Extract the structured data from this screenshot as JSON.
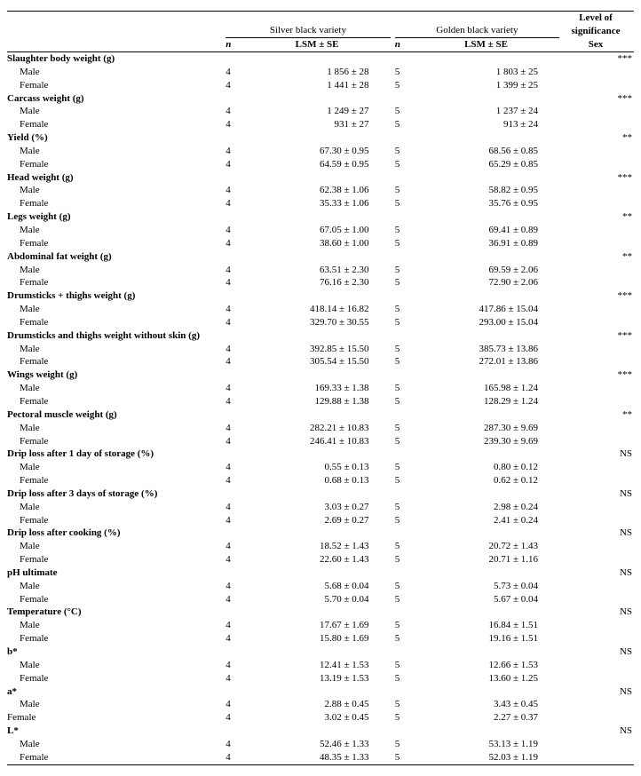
{
  "headers": {
    "variety1": "Silver black variety",
    "variety2": "Golden black variety",
    "level_sig": "Level of significance",
    "n": "n",
    "lsm": "LSM ± SE",
    "sex": "Sex"
  },
  "row_labels": {
    "male": "Male",
    "female": "Female"
  },
  "groups": [
    {
      "title": "Slaughter body weight (g)",
      "sig": "***",
      "rows": [
        {
          "sex": "male",
          "n1": "4",
          "lsm1": "1 856 ± 28",
          "n2": "5",
          "lsm2": "1 803 ± 25"
        },
        {
          "sex": "female",
          "n1": "4",
          "lsm1": "1 441 ± 28",
          "n2": "5",
          "lsm2": "1 399 ± 25"
        }
      ]
    },
    {
      "title": "Carcass weight (g)",
      "sig": "***",
      "rows": [
        {
          "sex": "male",
          "n1": "4",
          "lsm1": "1 249 ± 27",
          "n2": "5",
          "lsm2": "1 237 ± 24"
        },
        {
          "sex": "female",
          "n1": "4",
          "lsm1": "931 ± 27",
          "n2": "5",
          "lsm2": "913 ± 24"
        }
      ]
    },
    {
      "title": "Yield (%)",
      "sig": "**",
      "rows": [
        {
          "sex": "male",
          "n1": "4",
          "lsm1": "67.30 ± 0.95",
          "n2": "5",
          "lsm2": "68.56 ± 0.85"
        },
        {
          "sex": "female",
          "n1": "4",
          "lsm1": "64.59 ± 0.95",
          "n2": "5",
          "lsm2": "65.29 ± 0.85"
        }
      ]
    },
    {
      "title": "Head weight (g)",
      "sig": "***",
      "rows": [
        {
          "sex": "male",
          "n1": "4",
          "lsm1": "62.38 ± 1.06",
          "n2": "5",
          "lsm2": "58.82 ± 0.95"
        },
        {
          "sex": "female",
          "n1": "4",
          "lsm1": "35.33 ± 1.06",
          "n2": "5",
          "lsm2": "35.76 ± 0.95"
        }
      ]
    },
    {
      "title": "Legs weight (g)",
      "sig": "**",
      "rows": [
        {
          "sex": "male",
          "n1": "4",
          "lsm1": "67.05 ± 1.00",
          "n2": "5",
          "lsm2": "69.41 ± 0.89"
        },
        {
          "sex": "female",
          "n1": "4",
          "lsm1": "38.60 ± 1.00",
          "n2": "5",
          "lsm2": "36.91 ± 0.89"
        }
      ]
    },
    {
      "title": "Abdominal fat weight (g)",
      "sig": "**",
      "rows": [
        {
          "sex": "male",
          "n1": "4",
          "lsm1": "63.51 ± 2.30",
          "n2": "5",
          "lsm2": "69.59 ± 2.06"
        },
        {
          "sex": "female",
          "n1": "4",
          "lsm1": "76.16 ± 2.30",
          "n2": "5",
          "lsm2": "72.90 ± 2.06"
        }
      ]
    },
    {
      "title": "Drumsticks + thighs weight (g)",
      "sig": "***",
      "rows": [
        {
          "sex": "male",
          "n1": "4",
          "lsm1": "418.14 ± 16.82",
          "n2": "5",
          "lsm2": "417.86 ± 15.04"
        },
        {
          "sex": "female",
          "n1": "4",
          "lsm1": "329.70 ± 30.55",
          "n2": "5",
          "lsm2": "293.00 ± 15.04"
        }
      ]
    },
    {
      "title": "Drumsticks and thighs weight without skin (g)",
      "sig": "***",
      "rows": [
        {
          "sex": "male",
          "n1": "4",
          "lsm1": "392.85 ± 15.50",
          "n2": "5",
          "lsm2": "385.73 ± 13.86"
        },
        {
          "sex": "female",
          "n1": "4",
          "lsm1": "305.54 ± 15.50",
          "n2": "5",
          "lsm2": "272.01 ± 13.86"
        }
      ]
    },
    {
      "title": "Wings weight (g)",
      "sig": "***",
      "rows": [
        {
          "sex": "male",
          "n1": "4",
          "lsm1": "169.33 ± 1.38",
          "n2": "5",
          "lsm2": "165.98 ± 1.24"
        },
        {
          "sex": "female",
          "n1": "4",
          "lsm1": "129.88 ± 1.38",
          "n2": "5",
          "lsm2": "128.29 ± 1.24"
        }
      ]
    },
    {
      "title": "Pectoral muscle weight (g)",
      "sig": "**",
      "rows": [
        {
          "sex": "male",
          "n1": "4",
          "lsm1": "282.21 ± 10.83",
          "n2": "5",
          "lsm2": "287.30 ± 9.69"
        },
        {
          "sex": "female",
          "n1": "4",
          "lsm1": "246.41 ± 10.83",
          "n2": "5",
          "lsm2": "239.30 ± 9.69"
        }
      ]
    },
    {
      "title": "Drip loss after 1 day of storage (%)",
      "sig": "NS",
      "rows": [
        {
          "sex": "male",
          "n1": "4",
          "lsm1": "0.55 ± 0.13",
          "n2": "5",
          "lsm2": "0.80 ± 0.12"
        },
        {
          "sex": "female",
          "n1": "4",
          "lsm1": "0.68 ± 0.13",
          "n2": "5",
          "lsm2": "0.62 ± 0.12"
        }
      ]
    },
    {
      "title": "Drip loss after 3 days of storage (%)",
      "sig": "NS",
      "rows": [
        {
          "sex": "male",
          "n1": "4",
          "lsm1": "3.03 ± 0.27",
          "n2": "5",
          "lsm2": "2.98 ± 0.24"
        },
        {
          "sex": "female",
          "n1": "4",
          "lsm1": "2.69 ± 0.27",
          "n2": "5",
          "lsm2": "2.41 ± 0.24"
        }
      ]
    },
    {
      "title": "Drip loss after cooking (%)",
      "sig": "NS",
      "rows": [
        {
          "sex": "male",
          "n1": "4",
          "lsm1": "18.52 ± 1.43",
          "n2": "5",
          "lsm2": "20.72 ± 1.43"
        },
        {
          "sex": "female",
          "n1": "4",
          "lsm1": "22.60 ± 1.43",
          "n2": "5",
          "lsm2": "20.71 ± 1.16"
        }
      ]
    },
    {
      "title": "pH ultimate",
      "sig": "NS",
      "rows": [
        {
          "sex": "male",
          "n1": "4",
          "lsm1": "5.68 ± 0.04",
          "n2": "5",
          "lsm2": "5.73 ± 0.04"
        },
        {
          "sex": "female",
          "n1": "4",
          "lsm1": "5.70 ± 0.04",
          "n2": "5",
          "lsm2": "5.67 ± 0.04"
        }
      ]
    },
    {
      "title": "Temperature (°C)",
      "sig": "NS",
      "rows": [
        {
          "sex": "male",
          "n1": "4",
          "lsm1": "17.67 ± 1.69",
          "n2": "5",
          "lsm2": "16.84 ± 1.51"
        },
        {
          "sex": "female",
          "n1": "4",
          "lsm1": "15.80 ± 1.69",
          "n2": "5",
          "lsm2": "19.16 ± 1.51"
        }
      ]
    },
    {
      "title": "b*",
      "sig": "NS",
      "rows": [
        {
          "sex": "male",
          "n1": "4",
          "lsm1": "12.41 ± 1.53",
          "n2": "5",
          "lsm2": "12.66 ± 1.53"
        },
        {
          "sex": "female",
          "n1": "4",
          "lsm1": "13.19 ± 1.53",
          "n2": "5",
          "lsm2": "13.60 ± 1.25"
        }
      ]
    },
    {
      "title": "a*",
      "sig": "NS",
      "rows": [
        {
          "sex": "male",
          "n1": "4",
          "lsm1": "2.88 ± 0.45",
          "n2": "5",
          "lsm2": "3.43 ± 0.45"
        },
        {
          "sex": "female",
          "n1": "4",
          "lsm1": "3.02 ± 0.45",
          "n2": "5",
          "lsm2": "2.27 ± 0.37",
          "noindent": true
        }
      ]
    },
    {
      "title": "L*",
      "sig": "NS",
      "rows": [
        {
          "sex": "male",
          "n1": "4",
          "lsm1": "52.46 ± 1.33",
          "n2": "5",
          "lsm2": "53.13 ± 1.19"
        },
        {
          "sex": "female",
          "n1": "4",
          "lsm1": "48.35 ± 1.33",
          "n2": "5",
          "lsm2": "52.03 ± 1.19"
        }
      ]
    }
  ]
}
